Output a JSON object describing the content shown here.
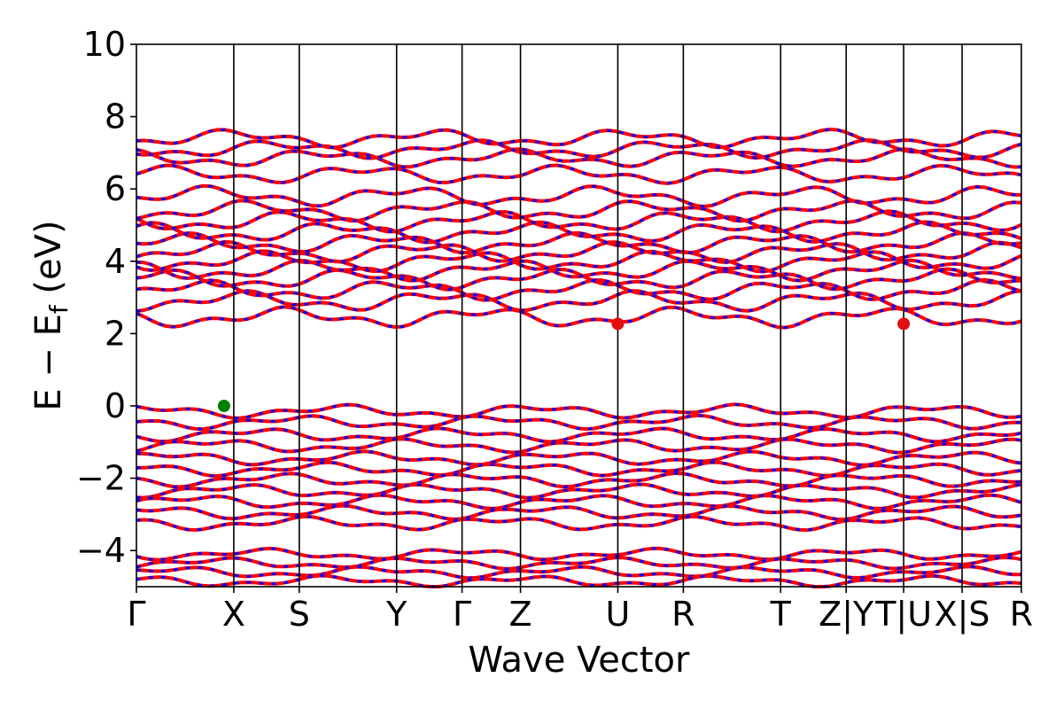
{
  "chart_data": {
    "type": "line",
    "title": "",
    "xlabel": "Wave Vector",
    "ylabel": "E − E",
    "ylabel_subscript": "f",
    "ylabel_unit": " (eV)",
    "ylim": [
      -5,
      10
    ],
    "y_ticks": [
      -4,
      -2,
      0,
      2,
      4,
      6,
      8,
      10
    ],
    "y_tick_labels": [
      "−4",
      "−2",
      "0",
      "2",
      "4",
      "6",
      "8",
      "10"
    ],
    "grid": false,
    "legend": "none",
    "path_x_range": [
      0,
      1
    ],
    "kpoints": [
      {
        "label": "Γ",
        "x": 0.0
      },
      {
        "label": "X",
        "x": 0.11
      },
      {
        "label": "S",
        "x": 0.184
      },
      {
        "label": "Y",
        "x": 0.294
      },
      {
        "label": "Γ",
        "x": 0.368
      },
      {
        "label": "Z",
        "x": 0.434
      },
      {
        "label": "U",
        "x": 0.544
      },
      {
        "label": "R",
        "x": 0.618
      },
      {
        "label": "T",
        "x": 0.728
      },
      {
        "label": "Z|Y",
        "x": 0.802
      },
      {
        "label": "T|U",
        "x": 0.867
      },
      {
        "label": "X|S",
        "x": 0.933
      },
      {
        "label": "R",
        "x": 1.0
      }
    ],
    "band_colors": [
      "#ff0000",
      "#0000ff"
    ],
    "valence_energies": [
      -0.15,
      -0.45,
      -0.8,
      -1.1,
      -1.45,
      -1.75,
      -2.05,
      -2.35,
      -2.65,
      -2.95,
      -3.25
    ],
    "core_energies": [
      -4.1,
      -4.35,
      -4.6,
      -4.85
    ],
    "conduction_energies": [
      2.45,
      2.9,
      3.2,
      3.5,
      3.75,
      4.0,
      4.25,
      4.5,
      4.8,
      5.1,
      5.4,
      5.8
    ],
    "upper_energies": [
      6.4,
      6.85,
      7.1,
      7.4
    ],
    "special_points": [
      {
        "name": "VBM",
        "x": 0.099,
        "y": 0.0,
        "color": "#008000"
      },
      {
        "name": "CBM",
        "x": 0.544,
        "y": 2.27,
        "color": "#e01010"
      },
      {
        "name": "CBM",
        "x": 0.867,
        "y": 2.27,
        "color": "#e01010"
      }
    ]
  }
}
